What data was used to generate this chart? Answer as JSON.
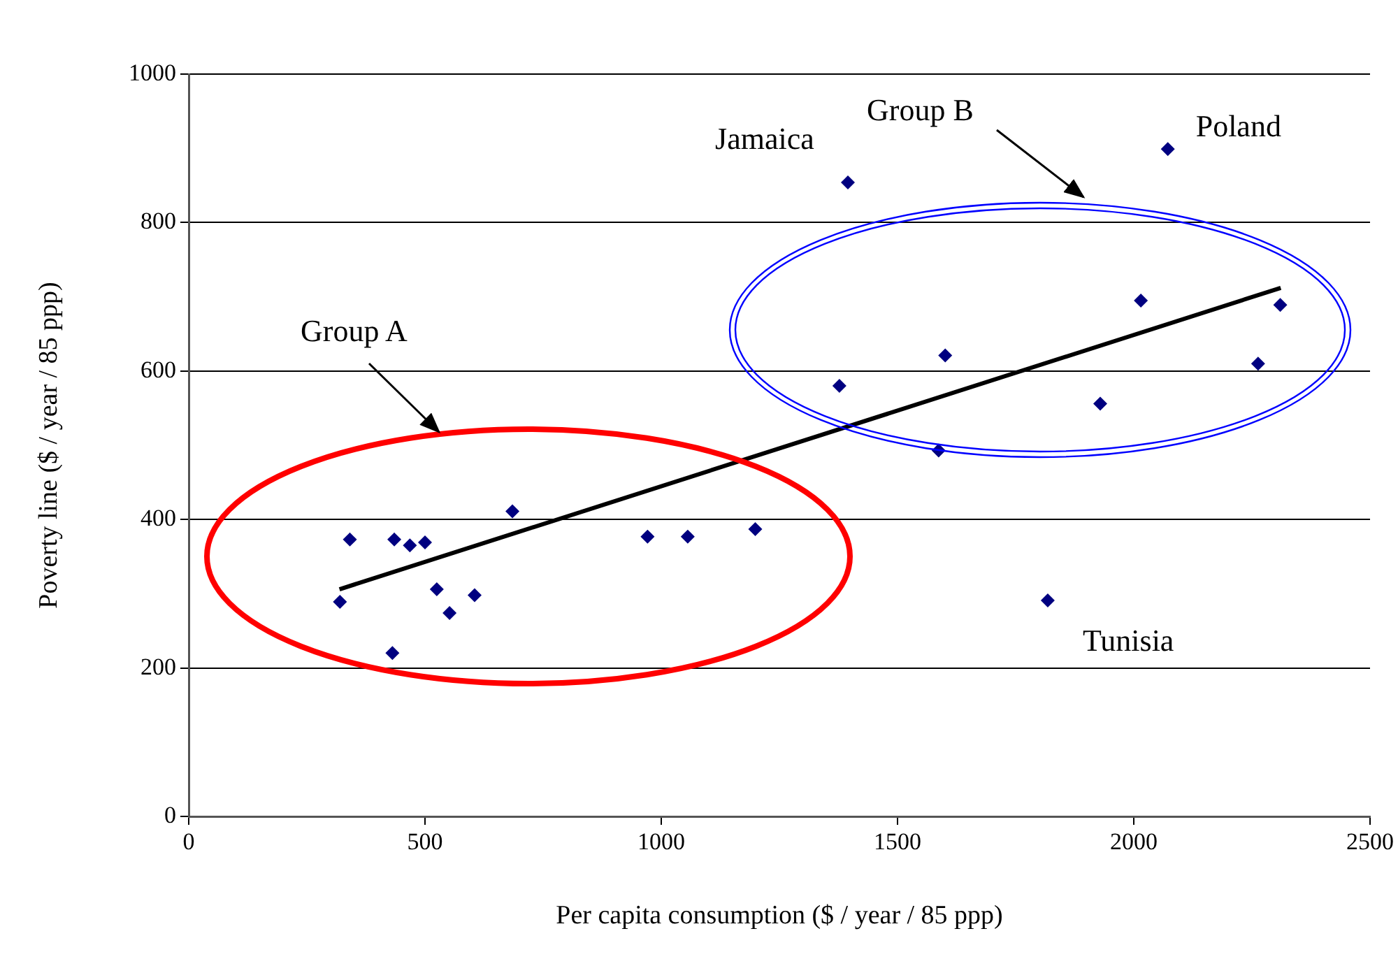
{
  "chart_data": {
    "type": "scatter",
    "xlabel": "Per capita consumption ($ / year / 85 ppp)",
    "ylabel": "Poverty line ($ / year / 85 ppp)",
    "xlim": [
      0,
      2500
    ],
    "xticks": [
      0,
      500,
      1000,
      1500,
      2000,
      2500
    ],
    "ylim": [
      0,
      1000
    ],
    "yticks": [
      0,
      200,
      400,
      600,
      800,
      1000
    ],
    "grid": "y",
    "legend": false,
    "marker": "diamond",
    "series": [
      {
        "color": "#000080",
        "x": [
          320,
          341,
          431,
          435,
          468,
          500,
          525,
          552,
          605,
          685,
          971,
          1056,
          1199,
          1377,
          1395,
          1587,
          1601,
          1818,
          1929,
          2015,
          2072,
          2263,
          2310
        ],
        "values": [
          289,
          373,
          220,
          373,
          365,
          369,
          306,
          274,
          298,
          411,
          377,
          377,
          387,
          580,
          854,
          493,
          621,
          291,
          556,
          695,
          899,
          610,
          689
        ]
      },
      {
        "type": "line",
        "color": "#000000",
        "marker": "none",
        "x": [
          319,
          2311
        ],
        "values": [
          306,
          712
        ]
      }
    ],
    "annotations": [
      "Group A",
      "Group B",
      {
        "text": "Jamaica",
        "x": 1395,
        "y": 854
      },
      {
        "text": "Poland",
        "x": 2072,
        "y": 899
      },
      {
        "text": "Tunisia",
        "x": 1818,
        "y": 291
      }
    ]
  }
}
